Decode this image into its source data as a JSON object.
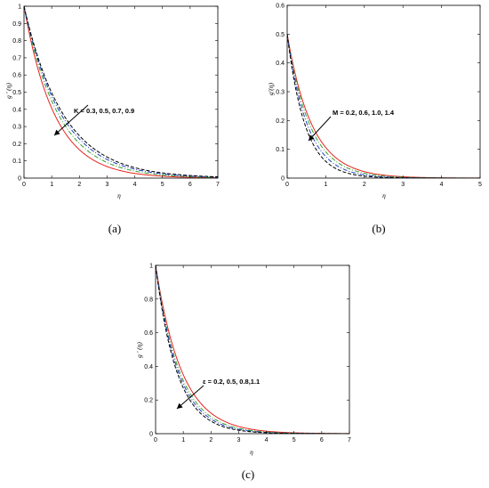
{
  "chart_data": [
    {
      "type": "line",
      "panel_label": "(a)",
      "xlabel": "η",
      "ylabel": "g ' (η)",
      "xlim": [
        0,
        7
      ],
      "ylim": [
        0,
        1
      ],
      "xticks": [
        "0",
        "1",
        "2",
        "3",
        "4",
        "5",
        "6",
        "7"
      ],
      "yticks": [
        "0",
        "0.1",
        "0.2",
        "0.3",
        "0.4",
        "0.5",
        "0.6",
        "0.7",
        "0.8",
        "0.9",
        "1"
      ],
      "annotation": "K = 0.3, 0.5, 0.7, 0.9",
      "grid": false,
      "series": [
        {
          "color": "#e8231f",
          "dash": "solid",
          "start": 1.0,
          "decay": 0.9
        },
        {
          "color": "#33a02c",
          "dash": "dashdot",
          "start": 1.0,
          "decay": 0.8
        },
        {
          "color": "#1f3fbf",
          "dash": "dashdot",
          "start": 1.0,
          "decay": 0.74
        },
        {
          "color": "#000000",
          "dash": "dashed",
          "start": 1.0,
          "decay": 0.7
        }
      ]
    },
    {
      "type": "line",
      "panel_label": "(b)",
      "xlabel": "η",
      "ylabel": "g'(η)",
      "xlim": [
        0,
        5
      ],
      "ylim": [
        0,
        0.6
      ],
      "xticks": [
        "0",
        "1",
        "2",
        "3",
        "4",
        "5"
      ],
      "yticks": [
        "0",
        "0.1",
        "0.2",
        "0.3",
        "0.4",
        "0.5",
        "0.6"
      ],
      "annotation": "M = 0.2, 0.6, 1.0, 1.4",
      "grid": false,
      "series": [
        {
          "color": "#e8231f",
          "dash": "solid",
          "start": 0.5,
          "decay": 1.55
        },
        {
          "color": "#33a02c",
          "dash": "dashdot",
          "start": 0.5,
          "decay": 1.7
        },
        {
          "color": "#1f3fbf",
          "dash": "dashdot",
          "start": 0.5,
          "decay": 1.9
        },
        {
          "color": "#000000",
          "dash": "dashed",
          "start": 0.5,
          "decay": 2.15
        }
      ]
    },
    {
      "type": "line",
      "panel_label": "(c)",
      "xlabel": "η",
      "ylabel": "g ' (η)",
      "xlim": [
        0,
        7
      ],
      "ylim": [
        0,
        1
      ],
      "xticks": [
        "0",
        "1",
        "2",
        "3",
        "4",
        "5",
        "6",
        "7"
      ],
      "yticks": [
        "0",
        "0.2",
        "0.4",
        "0.6",
        "0.8",
        "1"
      ],
      "annotation": "ε = 0.2, 0.5, 0.8,1.1",
      "grid": false,
      "series": [
        {
          "color": "#e8231f",
          "dash": "solid",
          "start": 1.0,
          "decay": 1.05
        },
        {
          "color": "#33a02c",
          "dash": "dashdot",
          "start": 1.0,
          "decay": 1.15
        },
        {
          "color": "#1f3fbf",
          "dash": "dashdot",
          "start": 1.0,
          "decay": 1.22
        },
        {
          "color": "#000000",
          "dash": "dashed",
          "start": 1.0,
          "decay": 1.3
        }
      ]
    }
  ]
}
